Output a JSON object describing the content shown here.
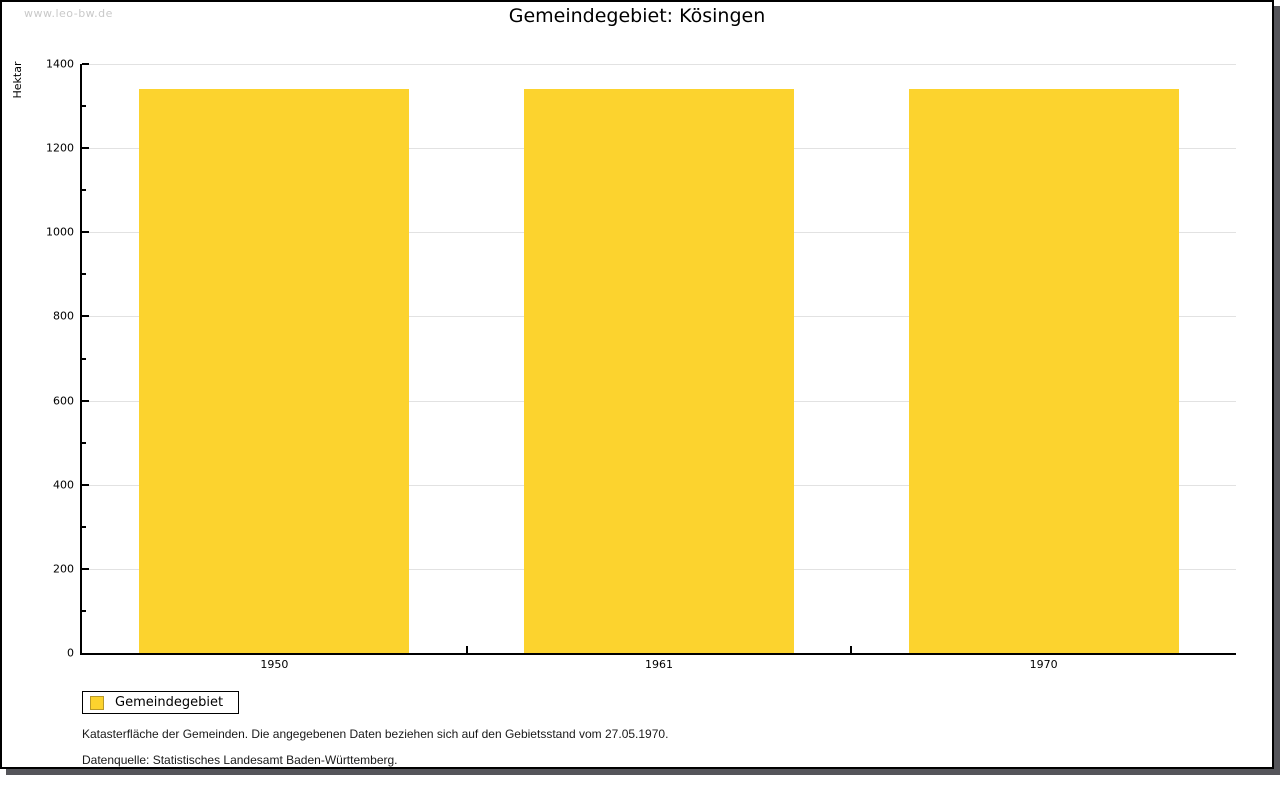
{
  "watermark": "www.leo-bw.de",
  "title": "Gemeindegebiet: Kösingen",
  "chart_data": {
    "type": "bar",
    "title": "Gemeindegebiet: Kösingen",
    "categories": [
      "1950",
      "1961",
      "1970"
    ],
    "series": [
      {
        "name": "Gemeindegebiet",
        "values": [
          1340,
          1340,
          1340
        ]
      }
    ],
    "xlabel": "",
    "ylabel": "Hektar",
    "ylim": [
      0,
      1400
    ],
    "ytick_step": 200,
    "minor_tick_step": 100,
    "grid": true,
    "legend_position": "bottom-left",
    "bar_color": "#fcd32e"
  },
  "y_axis": {
    "label": "Hektar"
  },
  "legend": {
    "label": "Gemeindegebiet"
  },
  "footnotes": {
    "line1": "Katasterfläche der Gemeinden. Die angegebenen Daten beziehen sich auf den Gebietsstand vom 27.05.1970.",
    "line2": "Datenquelle: Statistisches Landesamt Baden-Württemberg."
  },
  "colors": {
    "bar_fill": "#fcd32e",
    "swatch_border": "#b8992b",
    "gridline": "#e2e2e2",
    "watermark": "#c9c9c9",
    "shadow": "#55555a",
    "axis": "#000000"
  }
}
